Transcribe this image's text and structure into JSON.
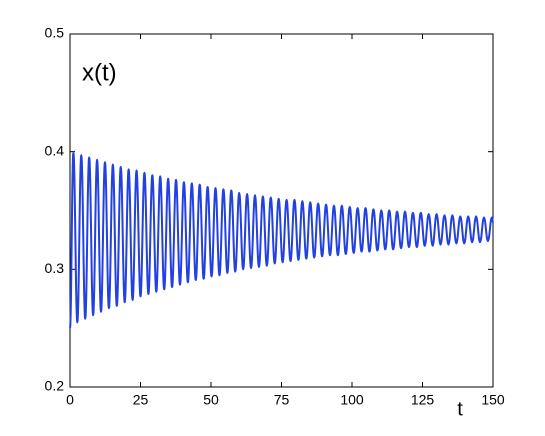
{
  "chart_data": {
    "type": "line",
    "ylabel": "x(t)",
    "xlabel": "t",
    "xlim": [
      0,
      150
    ],
    "xticks": [
      0,
      25,
      50,
      75,
      100,
      125,
      150
    ],
    "ylim": [
      0.2,
      0.5
    ],
    "yticks": [
      0.2,
      0.3,
      0.4,
      0.5
    ],
    "grid": false,
    "series": [
      {
        "color": "#2340e0",
        "x": [
          0,
          1.2,
          2.6,
          4,
          5.4,
          6.8,
          8.2,
          9.6,
          11,
          12.4,
          13.8,
          15.2,
          16.6,
          18,
          19.4,
          20.8,
          22.2,
          23.6,
          25,
          26.4,
          27.8,
          29.2,
          30.6,
          32,
          33.4,
          34.8,
          36.2,
          37.6,
          39,
          40.4,
          41.8,
          43.2,
          44.6,
          46,
          47.4,
          48.8,
          50.2,
          51.6,
          53,
          54.4,
          55.8,
          57.2,
          58.6,
          60,
          61.4,
          62.8,
          64.2,
          65.6,
          67,
          68.4,
          69.8,
          71.2,
          72.6,
          74,
          75.4,
          76.8,
          78.2,
          79.6,
          81,
          82.4,
          83.8,
          85.2,
          86.6,
          88,
          89.4,
          90.8,
          92.2,
          93.6,
          95,
          96.4,
          97.8,
          99.2,
          100.6,
          102,
          103.4,
          104.8,
          106.2,
          107.6,
          109,
          110.4,
          111.8,
          113.2,
          114.6,
          116,
          117.4,
          118.8,
          120.2,
          121.6,
          123,
          124.4,
          125.8,
          127.2,
          128.6,
          130,
          131.4,
          132.8,
          134.2,
          135.6,
          137,
          138.4,
          139.8,
          141.2,
          142.6,
          144,
          145.4,
          146.8,
          148.2,
          149.6,
          150
        ],
        "values": [
          0.25,
          0.399,
          0.255,
          0.397,
          0.258,
          0.395,
          0.261,
          0.393,
          0.264,
          0.391,
          0.267,
          0.389,
          0.269,
          0.387,
          0.272,
          0.385,
          0.274,
          0.384,
          0.277,
          0.382,
          0.279,
          0.38,
          0.281,
          0.379,
          0.283,
          0.377,
          0.285,
          0.376,
          0.287,
          0.374,
          0.289,
          0.373,
          0.291,
          0.372,
          0.292,
          0.37,
          0.294,
          0.369,
          0.295,
          0.368,
          0.297,
          0.367,
          0.298,
          0.365,
          0.3,
          0.364,
          0.301,
          0.363,
          0.302,
          0.362,
          0.303,
          0.361,
          0.305,
          0.36,
          0.306,
          0.359,
          0.307,
          0.359,
          0.308,
          0.358,
          0.309,
          0.357,
          0.31,
          0.356,
          0.311,
          0.355,
          0.312,
          0.354,
          0.312,
          0.354,
          0.313,
          0.353,
          0.314,
          0.352,
          0.315,
          0.352,
          0.315,
          0.351,
          0.316,
          0.35,
          0.317,
          0.35,
          0.317,
          0.349,
          0.318,
          0.349,
          0.319,
          0.348,
          0.319,
          0.348,
          0.32,
          0.347,
          0.32,
          0.347,
          0.321,
          0.346,
          0.321,
          0.346,
          0.322,
          0.345,
          0.322,
          0.345,
          0.323,
          0.345,
          0.323,
          0.344,
          0.324,
          0.344,
          0.34
        ]
      }
    ]
  }
}
